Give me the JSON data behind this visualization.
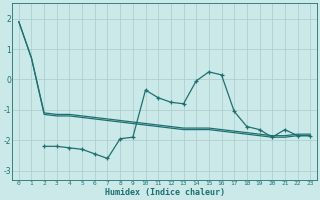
{
  "xlabel": "Humidex (Indice chaleur)",
  "bg_color": "#cce9e9",
  "grid_color": "#aacccc",
  "line_color": "#1e7070",
  "tick_color": "#1e7070",
  "ylim": [
    -3.3,
    2.5
  ],
  "xlim": [
    -0.5,
    23.5
  ],
  "yticks": [
    -3,
    -2,
    -1,
    0,
    1,
    2
  ],
  "xticks": [
    0,
    1,
    2,
    3,
    4,
    5,
    6,
    7,
    8,
    9,
    10,
    11,
    12,
    13,
    14,
    15,
    16,
    17,
    18,
    19,
    20,
    21,
    22,
    23
  ],
  "line1_x": [
    0,
    1,
    2,
    3,
    4,
    5,
    6,
    7,
    8,
    9,
    10,
    11,
    12,
    13,
    14,
    15,
    16,
    17,
    18,
    19,
    20,
    21,
    22,
    23
  ],
  "line1_y": [
    1.9,
    0.7,
    -1.15,
    -1.2,
    -1.2,
    -1.25,
    -1.3,
    -1.35,
    -1.4,
    -1.45,
    -1.5,
    -1.55,
    -1.6,
    -1.65,
    -1.65,
    -1.65,
    -1.7,
    -1.75,
    -1.8,
    -1.85,
    -1.9,
    -1.9,
    -1.85,
    -1.85
  ],
  "line2_x": [
    0,
    1,
    2,
    3,
    4,
    5,
    6,
    7,
    8,
    9,
    10,
    11,
    12,
    13,
    14,
    15,
    16,
    17,
    18,
    19,
    20,
    21,
    22,
    23
  ],
  "line2_y": [
    1.9,
    0.7,
    -1.1,
    -1.15,
    -1.15,
    -1.2,
    -1.25,
    -1.3,
    -1.35,
    -1.4,
    -1.45,
    -1.5,
    -1.55,
    -1.6,
    -1.6,
    -1.6,
    -1.65,
    -1.7,
    -1.75,
    -1.8,
    -1.85,
    -1.85,
    -1.8,
    -1.8
  ],
  "line3_x": [
    2,
    3,
    4,
    5,
    6,
    7,
    8,
    9,
    10,
    11,
    12,
    13,
    14,
    15,
    16,
    17,
    18,
    19,
    20,
    21,
    22,
    23
  ],
  "line3_y": [
    -2.2,
    -2.2,
    -2.25,
    -2.3,
    -2.45,
    -2.6,
    -1.95,
    -1.9,
    -0.35,
    -0.6,
    -0.75,
    -0.8,
    -0.05,
    0.25,
    0.15,
    -1.05,
    -1.55,
    -1.65,
    -1.9,
    -1.65,
    -1.85,
    -1.85
  ]
}
